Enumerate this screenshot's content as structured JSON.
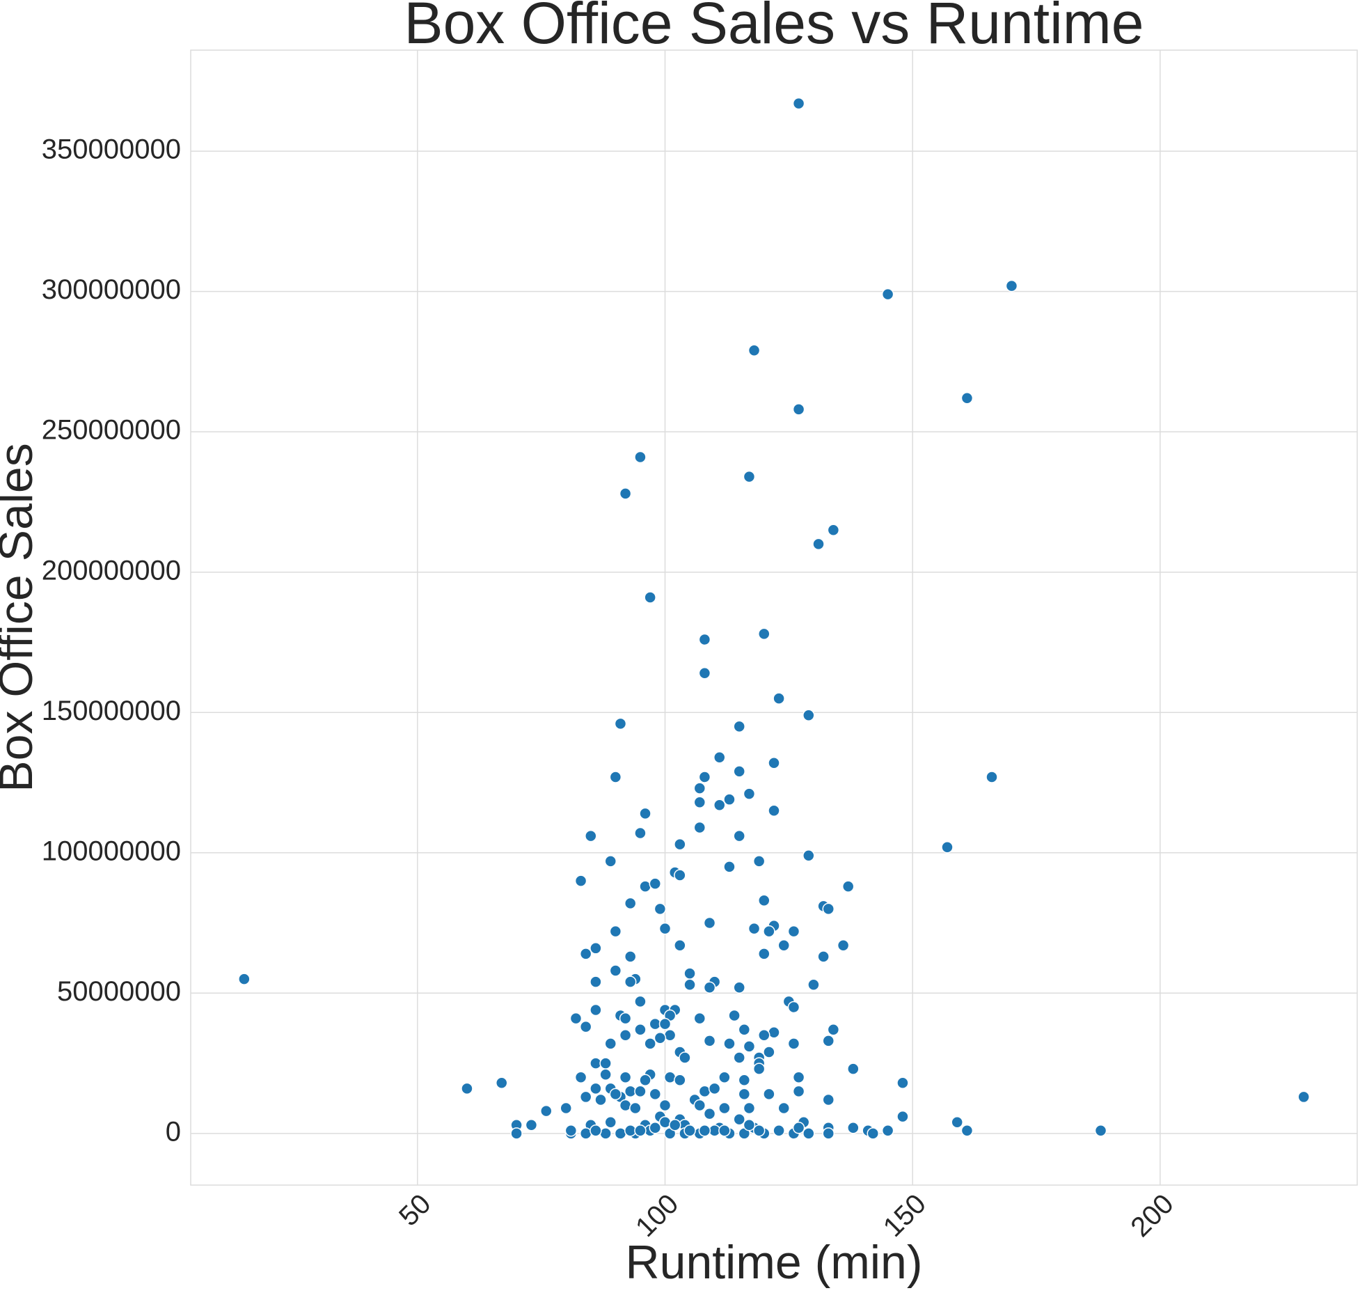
{
  "chart_data": {
    "type": "scatter",
    "title": "Box Office Sales vs Runtime",
    "x_label": "Runtime (min)",
    "y_label": "Box Office Sales",
    "color": "#1f77b4",
    "grid": true,
    "xlim": [
      4.2,
      239.8
    ],
    "xticks": [
      50,
      100,
      150,
      200
    ],
    "ylim": [
      -18400000,
      386000000
    ],
    "yticks": [
      0,
      50000000,
      100000000,
      150000000,
      200000000,
      250000000,
      300000000,
      350000000
    ],
    "x": [
      15,
      127,
      145,
      170,
      118,
      161,
      127,
      95,
      92,
      117,
      134,
      131,
      97,
      120,
      108,
      108,
      123,
      129,
      91,
      115,
      111,
      122,
      90,
      166,
      108,
      115,
      107,
      117,
      113,
      107,
      111,
      122,
      96,
      85,
      95,
      115,
      107,
      157,
      103,
      89,
      119,
      129,
      113,
      102,
      103,
      83,
      96,
      98,
      137,
      93,
      120,
      99,
      132,
      133,
      109,
      122,
      90,
      100,
      118,
      121,
      126,
      124,
      136,
      86,
      103,
      84,
      93,
      120,
      132,
      90,
      105,
      94,
      93,
      86,
      110,
      105,
      109,
      115,
      130,
      95,
      125,
      126,
      86,
      100,
      102,
      91,
      92,
      101,
      82,
      107,
      114,
      98,
      84,
      100,
      116,
      134,
      122,
      101,
      95,
      99,
      120,
      109,
      133,
      126,
      92,
      89,
      113,
      97,
      117,
      103,
      121,
      119,
      104,
      115,
      86,
      88,
      119,
      138,
      97,
      88,
      119,
      101,
      83,
      96,
      92,
      112,
      116,
      127,
      103,
      86,
      60,
      67,
      148,
      89,
      93,
      95,
      91,
      98,
      106,
      108,
      110,
      116,
      121,
      127,
      133,
      84,
      87,
      90,
      92,
      100,
      107,
      112,
      117,
      124,
      229,
      76,
      80,
      94,
      99,
      103,
      109,
      115,
      148,
      159,
      70,
      73,
      85,
      89,
      96,
      100,
      104,
      111,
      118,
      128,
      133,
      138,
      145,
      161,
      188,
      70,
      81,
      84,
      88,
      91,
      94,
      97,
      101,
      104,
      107,
      110,
      113,
      116,
      120,
      123,
      126,
      129,
      133,
      141,
      142,
      81,
      86,
      93,
      98,
      105,
      108,
      117,
      119,
      127,
      95,
      102,
      112
    ],
    "values": [
      55000000,
      367000000,
      299000000,
      302000000,
      279000000,
      262000000,
      258000000,
      241000000,
      228000000,
      234000000,
      215000000,
      210000000,
      191000000,
      178000000,
      176000000,
      164000000,
      155000000,
      149000000,
      146000000,
      145000000,
      134000000,
      132000000,
      127000000,
      127000000,
      127000000,
      129000000,
      123000000,
      121000000,
      119000000,
      118000000,
      117000000,
      115000000,
      114000000,
      106000000,
      107000000,
      106000000,
      109000000,
      102000000,
      103000000,
      97000000,
      97000000,
      99000000,
      95000000,
      93000000,
      92000000,
      90000000,
      88000000,
      89000000,
      88000000,
      82000000,
      83000000,
      80000000,
      81000000,
      80000000,
      75000000,
      74000000,
      72000000,
      73000000,
      73000000,
      72000000,
      72000000,
      67000000,
      67000000,
      66000000,
      67000000,
      64000000,
      63000000,
      64000000,
      63000000,
      58000000,
      57000000,
      55000000,
      54000000,
      54000000,
      54000000,
      53000000,
      52000000,
      52000000,
      53000000,
      47000000,
      47000000,
      45000000,
      44000000,
      44000000,
      44000000,
      42000000,
      41000000,
      42000000,
      41000000,
      41000000,
      42000000,
      39000000,
      38000000,
      39000000,
      37000000,
      37000000,
      36000000,
      35000000,
      37000000,
      34000000,
      35000000,
      33000000,
      33000000,
      32000000,
      35000000,
      32000000,
      32000000,
      32000000,
      31000000,
      29000000,
      29000000,
      27000000,
      27000000,
      27000000,
      25000000,
      25000000,
      25000000,
      23000000,
      21000000,
      21000000,
      23000000,
      20000000,
      20000000,
      19000000,
      20000000,
      20000000,
      19000000,
      20000000,
      19000000,
      16000000,
      16000000,
      18000000,
      18000000,
      16000000,
      15000000,
      15000000,
      13000000,
      14000000,
      12000000,
      15000000,
      16000000,
      14000000,
      14000000,
      15000000,
      12000000,
      13000000,
      12000000,
      14000000,
      10000000,
      10000000,
      10000000,
      9000000,
      9000000,
      9000000,
      13000000,
      8000000,
      9000000,
      9000000,
      6000000,
      5000000,
      7000000,
      5000000,
      6000000,
      4000000,
      3000000,
      3000000,
      3000000,
      4000000,
      3000000,
      4000000,
      3000000,
      2000000,
      2000000,
      4000000,
      2000000,
      2000000,
      1000000,
      1000000,
      1000000,
      0,
      0,
      0,
      0,
      0,
      0,
      1000000,
      0,
      0,
      0,
      1000000,
      0,
      0,
      0,
      1000000,
      0,
      0,
      0,
      1000000,
      0,
      1000000,
      1000000,
      1000000,
      2000000,
      1000000,
      1000000,
      3000000,
      1000000,
      2000000,
      1000000,
      3000000,
      1000000
    ]
  }
}
